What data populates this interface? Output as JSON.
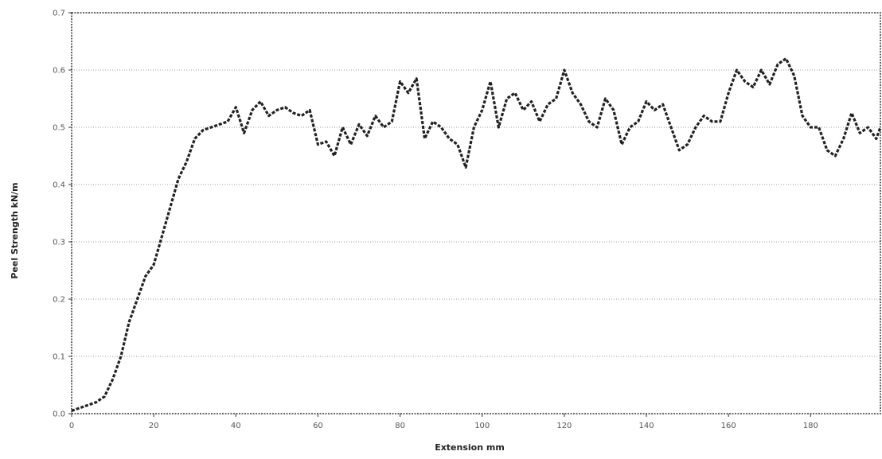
{
  "chart_data": {
    "type": "line",
    "title": "",
    "xlabel": "Extension mm",
    "ylabel": "Peel Strength kN/m",
    "xlim": [
      0,
      197
    ],
    "ylim": [
      0,
      0.7
    ],
    "x_ticks": [
      0,
      20,
      40,
      60,
      80,
      100,
      120,
      140,
      160,
      180
    ],
    "x_tick_labels": [
      "0",
      "20",
      "40",
      "60",
      "80",
      "100",
      "120",
      "140",
      "160",
      "180"
    ],
    "y_ticks": [
      0,
      0.1,
      0.2,
      0.3,
      0.4,
      0.5,
      0.6,
      0.7
    ],
    "y_tick_labels": [
      "0.0",
      "0.1",
      "0.2",
      "0.3",
      "0.4",
      "0.5",
      "0.6",
      "0.7"
    ],
    "grid": true,
    "legend": "none",
    "colors": {
      "line": "#222222",
      "grid": "#9a9a9a",
      "frame": "#333333"
    },
    "series": [
      {
        "x": [
          0,
          2,
          4,
          6,
          8,
          10,
          12,
          14,
          16,
          18,
          20,
          22,
          24,
          26,
          28,
          30,
          32,
          34,
          36,
          38,
          40,
          42,
          44,
          46,
          48,
          50,
          52,
          54,
          56,
          58,
          60,
          62,
          64,
          66,
          68,
          70,
          72,
          74,
          76,
          78,
          80,
          82,
          84,
          86,
          88,
          90,
          92,
          94,
          96,
          98,
          100,
          102,
          104,
          106,
          108,
          110,
          112,
          114,
          116,
          118,
          120,
          122,
          124,
          126,
          128,
          130,
          132,
          134,
          136,
          138,
          140,
          142,
          144,
          146,
          148,
          150,
          152,
          154,
          156,
          158,
          160,
          162,
          164,
          166,
          168,
          170,
          172,
          174,
          176,
          178,
          180,
          182,
          184,
          186,
          188,
          190,
          192,
          194,
          196,
          197
        ],
        "y": [
          0.005,
          0.01,
          0.015,
          0.02,
          0.03,
          0.06,
          0.1,
          0.16,
          0.2,
          0.24,
          0.26,
          0.31,
          0.36,
          0.41,
          0.44,
          0.48,
          0.495,
          0.5,
          0.505,
          0.51,
          0.535,
          0.49,
          0.53,
          0.545,
          0.52,
          0.53,
          0.535,
          0.525,
          0.52,
          0.53,
          0.47,
          0.475,
          0.45,
          0.5,
          0.47,
          0.505,
          0.485,
          0.52,
          0.5,
          0.51,
          0.58,
          0.56,
          0.585,
          0.48,
          0.51,
          0.5,
          0.48,
          0.47,
          0.43,
          0.5,
          0.53,
          0.58,
          0.5,
          0.55,
          0.56,
          0.53,
          0.545,
          0.51,
          0.54,
          0.55,
          0.6,
          0.56,
          0.54,
          0.51,
          0.5,
          0.55,
          0.53,
          0.47,
          0.5,
          0.51,
          0.545,
          0.53,
          0.54,
          0.5,
          0.46,
          0.47,
          0.5,
          0.52,
          0.51,
          0.51,
          0.56,
          0.6,
          0.58,
          0.57,
          0.6,
          0.575,
          0.61,
          0.62,
          0.59,
          0.52,
          0.5,
          0.5,
          0.46,
          0.45,
          0.48,
          0.525,
          0.49,
          0.5,
          0.48,
          0.5
        ]
      }
    ]
  }
}
